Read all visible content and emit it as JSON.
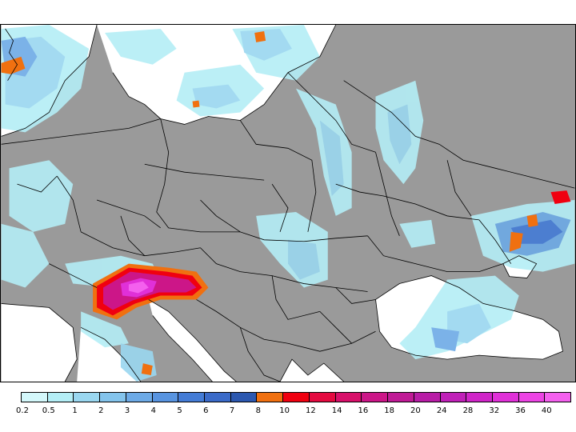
{
  "legend": {
    "labels": [
      "0.2",
      "0.5",
      "1",
      "2",
      "3",
      "4",
      "5",
      "6",
      "7",
      "8",
      "10",
      "12",
      "14",
      "16",
      "18",
      "20",
      "24",
      "28",
      "32",
      "36",
      "40"
    ],
    "colors": [
      "#d4f8fb",
      "#b4eef6",
      "#9ad7f0",
      "#84c4ec",
      "#6daae6",
      "#5894e0",
      "#447cd6",
      "#3a6ac8",
      "#2c58b0",
      "#f07010",
      "#f00010",
      "#e40a40",
      "#d8106a",
      "#cc1688",
      "#c01a96",
      "#b81ca6",
      "#c020b8",
      "#d024c8",
      "#e030d8",
      "#ec44e4",
      "#f460ee"
    ]
  },
  "map": {
    "colors": {
      "land": "#9a9a9a",
      "sea": "#ffffff",
      "border": "#000000"
    }
  }
}
